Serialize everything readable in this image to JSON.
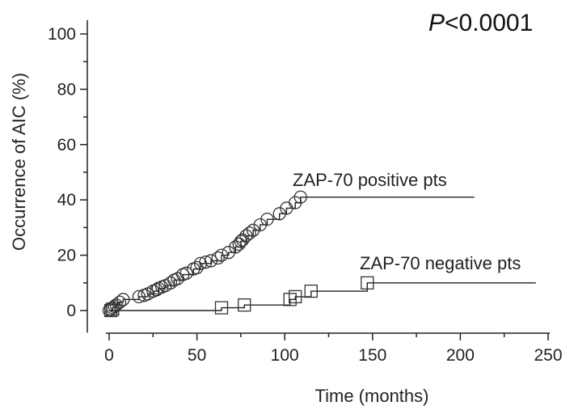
{
  "chart_data": {
    "type": "line",
    "xlabel": "Time (months)",
    "ylabel": "Occurrence of AIC (%)",
    "xlim": [
      0,
      250
    ],
    "ylim": [
      -8,
      105
    ],
    "xticks": [
      0,
      50,
      100,
      150,
      200,
      250
    ],
    "yticks": [
      0,
      20,
      40,
      60,
      80,
      100
    ],
    "grid": false,
    "annotation": {
      "p_italic": "P",
      "p_rest": "<0.0001"
    },
    "series": [
      {
        "name": "ZAP-70 positive pts",
        "marker": "circle",
        "step": [
          [
            0,
            0
          ],
          [
            2,
            1
          ],
          [
            4,
            2
          ],
          [
            6,
            3
          ],
          [
            8,
            4
          ],
          [
            17,
            5
          ],
          [
            22,
            6
          ],
          [
            25,
            7
          ],
          [
            28,
            8
          ],
          [
            32,
            9
          ],
          [
            37,
            11
          ],
          [
            42,
            13
          ],
          [
            48,
            15
          ],
          [
            52,
            17
          ],
          [
            58,
            18
          ],
          [
            64,
            20
          ],
          [
            68,
            21
          ],
          [
            72,
            23
          ],
          [
            75,
            25
          ],
          [
            78,
            27
          ],
          [
            82,
            29
          ],
          [
            86,
            31
          ],
          [
            90,
            33
          ],
          [
            97,
            35
          ],
          [
            101,
            37
          ],
          [
            106,
            39
          ],
          [
            109,
            41
          ],
          [
            208,
            41
          ]
        ],
        "markers": [
          [
            0,
            0
          ],
          [
            1,
            0.5
          ],
          [
            2,
            1
          ],
          [
            3,
            1.5
          ],
          [
            4,
            2
          ],
          [
            6,
            3
          ],
          [
            8,
            4
          ],
          [
            17,
            5
          ],
          [
            20,
            5.5
          ],
          [
            22,
            6
          ],
          [
            25,
            7
          ],
          [
            27,
            7.5
          ],
          [
            28,
            8
          ],
          [
            30,
            8.5
          ],
          [
            32,
            9
          ],
          [
            35,
            10
          ],
          [
            37,
            11
          ],
          [
            39,
            11.5
          ],
          [
            42,
            13
          ],
          [
            44,
            13.5
          ],
          [
            48,
            15
          ],
          [
            50,
            15.5
          ],
          [
            52,
            17
          ],
          [
            55,
            17.5
          ],
          [
            58,
            18
          ],
          [
            62,
            19
          ],
          [
            64,
            20
          ],
          [
            68,
            21
          ],
          [
            72,
            23
          ],
          [
            74,
            24
          ],
          [
            75,
            25
          ],
          [
            76,
            25.5
          ],
          [
            78,
            27
          ],
          [
            80,
            28
          ],
          [
            82,
            29
          ],
          [
            86,
            31
          ],
          [
            90,
            33
          ],
          [
            97,
            35
          ],
          [
            101,
            37
          ],
          [
            106,
            39
          ],
          [
            109,
            41
          ]
        ]
      },
      {
        "name": "ZAP-70 negative pts",
        "marker": "square",
        "step": [
          [
            0,
            0
          ],
          [
            63,
            0
          ],
          [
            64,
            1
          ],
          [
            76,
            1
          ],
          [
            77,
            2
          ],
          [
            102,
            2
          ],
          [
            103,
            4
          ],
          [
            105,
            4
          ],
          [
            106,
            5
          ],
          [
            113,
            5
          ],
          [
            115,
            7
          ],
          [
            145,
            7
          ],
          [
            147,
            10
          ],
          [
            243,
            10
          ]
        ],
        "markers": [
          [
            1,
            0
          ],
          [
            2,
            0.5
          ],
          [
            64,
            1
          ],
          [
            77,
            2
          ],
          [
            103,
            4
          ],
          [
            106,
            5
          ],
          [
            115,
            7
          ],
          [
            147,
            10
          ]
        ]
      }
    ]
  }
}
